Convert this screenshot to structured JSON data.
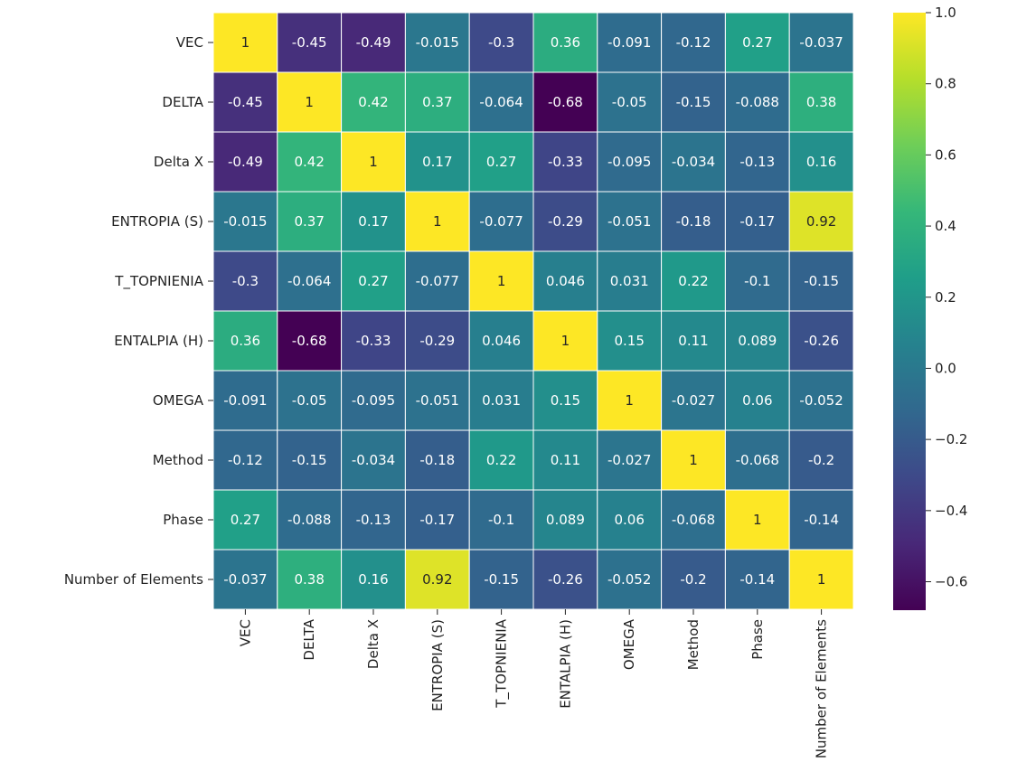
{
  "chart_data": {
    "type": "heatmap",
    "title": "",
    "xlabel": "",
    "ylabel": "",
    "labels": [
      "VEC",
      "DELTA",
      "Delta X",
      "ENTROPIA (S)",
      "T_TOPNIENIA",
      "ENTALPIA (H)",
      "OMEGA",
      "Method",
      "Phase",
      "Number of Elements"
    ],
    "values": [
      [
        "1",
        "-0.45",
        "-0.49",
        "-0.015",
        "-0.3",
        "0.36",
        "-0.091",
        "-0.12",
        "0.27",
        "-0.037"
      ],
      [
        "-0.45",
        "1",
        "0.42",
        "0.37",
        "-0.064",
        "-0.68",
        "-0.05",
        "-0.15",
        "-0.088",
        "0.38"
      ],
      [
        "-0.49",
        "0.42",
        "1",
        "0.17",
        "0.27",
        "-0.33",
        "-0.095",
        "-0.034",
        "-0.13",
        "0.16"
      ],
      [
        "-0.015",
        "0.37",
        "0.17",
        "1",
        "-0.077",
        "-0.29",
        "-0.051",
        "-0.18",
        "-0.17",
        "0.92"
      ],
      [
        "-0.3",
        "-0.064",
        "0.27",
        "-0.077",
        "1",
        "0.046",
        "0.031",
        "0.22",
        "-0.1",
        "-0.15"
      ],
      [
        "0.36",
        "-0.68",
        "-0.33",
        "-0.29",
        "0.046",
        "1",
        "0.15",
        "0.11",
        "0.089",
        "-0.26"
      ],
      [
        "-0.091",
        "-0.05",
        "-0.095",
        "-0.051",
        "0.031",
        "0.15",
        "1",
        "-0.027",
        "0.06",
        "-0.052"
      ],
      [
        "-0.12",
        "-0.15",
        "-0.034",
        "-0.18",
        "0.22",
        "0.11",
        "-0.027",
        "1",
        "-0.068",
        "-0.2"
      ],
      [
        "0.27",
        "-0.088",
        "-0.13",
        "-0.17",
        "-0.1",
        "0.089",
        "0.06",
        "-0.068",
        "1",
        "-0.14"
      ],
      [
        "-0.037",
        "0.38",
        "0.16",
        "0.92",
        "-0.15",
        "-0.26",
        "-0.052",
        "-0.2",
        "-0.14",
        "1"
      ]
    ],
    "colorbar": {
      "min": -0.68,
      "max": 1.0,
      "ticks": [
        1.0,
        0.8,
        0.6,
        0.4,
        0.2,
        0.0,
        -0.2,
        -0.4,
        -0.6
      ],
      "tick_labels": [
        "1.0",
        "0.8",
        "0.6",
        "0.4",
        "0.2",
        "0.0",
        "−0.2",
        "−0.4",
        "−0.6"
      ]
    },
    "colormap": "viridis",
    "colormap_stops": [
      "#440154",
      "#482878",
      "#3e4989",
      "#31688e",
      "#26828e",
      "#1f9e89",
      "#35b779",
      "#6ece58",
      "#b5de2b",
      "#fde725"
    ],
    "grid_line_color": "#ffffff",
    "text_color_light": "#ffffff",
    "text_color_dark": "#262626"
  }
}
